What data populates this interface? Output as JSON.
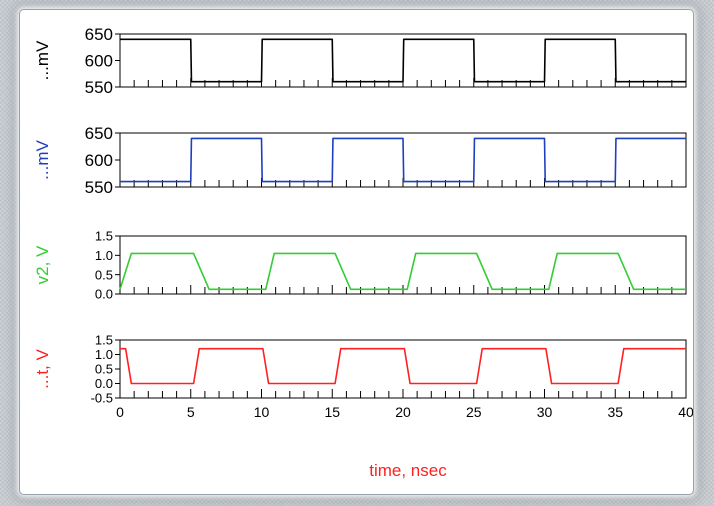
{
  "chart_data": [
    {
      "type": "line",
      "ylabel": "...mV",
      "yticks": [
        550,
        600,
        650
      ],
      "ylim": [
        550,
        650
      ],
      "xlim": [
        0,
        40
      ],
      "color": "#000000",
      "series": [
        {
          "x": [
            0,
            5,
            5.05,
            10,
            10.05,
            15,
            15.05,
            20,
            20.05,
            25,
            25.05,
            30,
            30.05,
            35,
            35.05,
            40
          ],
          "y": [
            640,
            640,
            560,
            560,
            640,
            640,
            560,
            560,
            640,
            640,
            560,
            560,
            640,
            640,
            560,
            560
          ]
        }
      ]
    },
    {
      "type": "line",
      "ylabel": "...mV",
      "yticks": [
        550,
        600,
        650
      ],
      "ylim": [
        550,
        650
      ],
      "xlim": [
        0,
        40
      ],
      "color": "#1f3fbf",
      "series": [
        {
          "x": [
            0,
            5,
            5.05,
            10,
            10.05,
            15,
            15.05,
            20,
            20.05,
            25,
            25.05,
            30,
            30.05,
            35,
            35.05,
            40
          ],
          "y": [
            560,
            560,
            640,
            640,
            560,
            560,
            640,
            640,
            560,
            560,
            640,
            640,
            560,
            560,
            640,
            640
          ]
        }
      ]
    },
    {
      "type": "line",
      "ylabel": "v2, V",
      "yticks": [
        0.0,
        0.5,
        1.0,
        1.5
      ],
      "yticklabels": [
        "0.0",
        "0.5",
        "1.0",
        "1.5"
      ],
      "ylim": [
        0,
        1.5
      ],
      "xlim": [
        0,
        40
      ],
      "color": "#33cc33",
      "series": [
        {
          "x": [
            0,
            0.8,
            5.2,
            6.3,
            10.3,
            10.9,
            15.2,
            16.3,
            20.3,
            20.9,
            25.2,
            26.3,
            30.3,
            30.9,
            35.2,
            36.3,
            40
          ],
          "y": [
            0.12,
            1.05,
            1.05,
            0.12,
            0.12,
            1.05,
            1.05,
            0.12,
            0.12,
            1.05,
            1.05,
            0.12,
            0.12,
            1.05,
            1.05,
            0.12,
            0.12
          ]
        }
      ]
    },
    {
      "type": "line",
      "ylabel": "...t, V",
      "yticks": [
        -0.5,
        0.0,
        0.5,
        1.0,
        1.5
      ],
      "yticklabels": [
        "-0.5",
        "0.0",
        "0.5",
        "1.0",
        "1.5"
      ],
      "ylim": [
        -0.5,
        1.5
      ],
      "xlim": [
        0,
        40
      ],
      "color": "#ff2020",
      "xticks": [
        0,
        5,
        10,
        15,
        20,
        25,
        30,
        35,
        40
      ],
      "xlabel": "time, nsec",
      "series": [
        {
          "x": [
            0,
            0.4,
            0.8,
            5.2,
            5.6,
            10.1,
            10.5,
            15.2,
            15.6,
            20.1,
            20.5,
            25.2,
            25.6,
            30.1,
            30.5,
            35.2,
            35.6,
            40
          ],
          "y": [
            1.2,
            1.2,
            0.0,
            0.0,
            1.2,
            1.2,
            0.0,
            0.0,
            1.2,
            1.2,
            0.0,
            0.0,
            1.2,
            1.2,
            0.0,
            0.0,
            1.2,
            1.2
          ]
        }
      ]
    }
  ]
}
